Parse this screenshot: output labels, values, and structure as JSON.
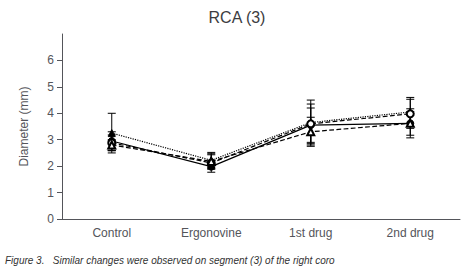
{
  "chart_data": {
    "type": "line",
    "title": "RCA (3)",
    "ylabel": "Diameter (mm)",
    "caption": "Figure 3.   Similar changes were observed on segment (3) of the right coro",
    "categories": [
      "Control",
      "Ergonovine",
      "1st drug",
      "2nd drug"
    ],
    "ylim": [
      0,
      7
    ],
    "yticks": [
      0,
      1,
      2,
      3,
      4,
      5,
      6
    ],
    "grid": false,
    "series": [
      {
        "marker": "circle",
        "line_style": "solid",
        "color": "#000000",
        "values": [
          2.95,
          1.98,
          3.55,
          3.62
        ],
        "yerr": [
          0.35,
          0.1,
          0.65,
          0.55
        ]
      },
      {
        "marker": "triangle",
        "line_style": "dotted",
        "color": "#000000",
        "values": [
          3.25,
          2.22,
          3.65,
          4.05
        ],
        "yerr": [
          0.75,
          0.3,
          0.85,
          0.55
        ]
      },
      {
        "marker": "open_circle",
        "line_style": "dashed",
        "color": "#000000",
        "values": [
          2.88,
          2.12,
          3.6,
          3.98
        ],
        "yerr": [
          0.3,
          0.35,
          0.75,
          0.55
        ]
      },
      {
        "marker": "open_triangle",
        "line_style": "dashed",
        "color": "#000000",
        "values": [
          2.8,
          2.18,
          3.3,
          3.62
        ],
        "yerr": [
          0.2,
          0.25,
          0.55,
          0.45
        ]
      }
    ]
  }
}
